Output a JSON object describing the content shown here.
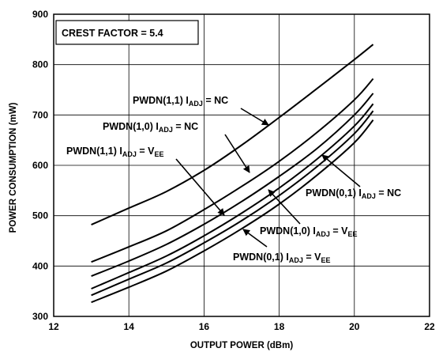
{
  "chart_data": {
    "type": "line",
    "title": "",
    "xlabel": "OUTPUT POWER (dBm)",
    "ylabel": "POWER CONSUMPTION (mW)",
    "xlim": [
      12,
      22
    ],
    "ylim": [
      300,
      900
    ],
    "xticks": [
      "12",
      "14",
      "16",
      "18",
      "20",
      "22"
    ],
    "yticks": [
      "300",
      "400",
      "500",
      "600",
      "700",
      "800",
      "900"
    ],
    "grid": true,
    "annotation_box": "CREST FACTOR = 5.4",
    "series": [
      {
        "name": "PWDN(1,1) I_ADJ = NC",
        "x": [
          13,
          14,
          15,
          16,
          17,
          18,
          19,
          20,
          20.5
        ],
        "y": [
          482,
          515,
          548,
          590,
          640,
          695,
          752,
          810,
          840
        ]
      },
      {
        "name": "PWDN(1,0) I_ADJ = NC",
        "x": [
          13,
          14,
          15,
          16,
          17,
          18,
          19,
          20,
          20.5
        ],
        "y": [
          408,
          438,
          470,
          512,
          558,
          608,
          665,
          730,
          772
        ]
      },
      {
        "name": "PWDN(1,1) I_ADJ = V_EE",
        "x": [
          13,
          14,
          15,
          16,
          17,
          18,
          19,
          20,
          20.5
        ],
        "y": [
          380,
          410,
          443,
          483,
          528,
          578,
          633,
          700,
          743
        ]
      },
      {
        "name": "PWDN(0,1) I_ADJ = NC",
        "x": [
          13,
          14,
          15,
          16,
          17,
          18,
          19,
          20,
          20.5
        ],
        "y": [
          355,
          387,
          420,
          460,
          505,
          555,
          612,
          678,
          722
        ]
      },
      {
        "name": "PWDN(1,0) I_ADJ = V_EE",
        "x": [
          13,
          14,
          15,
          16,
          17,
          18,
          19,
          20,
          20.5
        ],
        "y": [
          342,
          374,
          406,
          446,
          490,
          540,
          597,
          663,
          708
        ]
      },
      {
        "name": "PWDN(0,1) I_ADJ = V_EE",
        "x": [
          13,
          14,
          15,
          16,
          17,
          18,
          19,
          20,
          20.5
        ],
        "y": [
          328,
          358,
          390,
          430,
          474,
          523,
          580,
          645,
          690
        ]
      }
    ],
    "labels": [
      {
        "main": "PWDN(1,1) I",
        "sub": "ADJ",
        "tail": " = NC",
        "tailsub": ""
      },
      {
        "main": "PWDN(1,0) I",
        "sub": "ADJ",
        "tail": " = NC",
        "tailsub": ""
      },
      {
        "main": "PWDN(1,1) I",
        "sub": "ADJ",
        "tail": " = V",
        "tailsub": "EE"
      },
      {
        "main": "PWDN(0,1) I",
        "sub": "ADJ",
        "tail": " = NC",
        "tailsub": ""
      },
      {
        "main": "PWDN(1,0) I",
        "sub": "ADJ",
        "tail": " = V",
        "tailsub": "EE"
      },
      {
        "main": "PWDN(0,1) I",
        "sub": "ADJ",
        "tail": " = V",
        "tailsub": "EE"
      }
    ]
  }
}
